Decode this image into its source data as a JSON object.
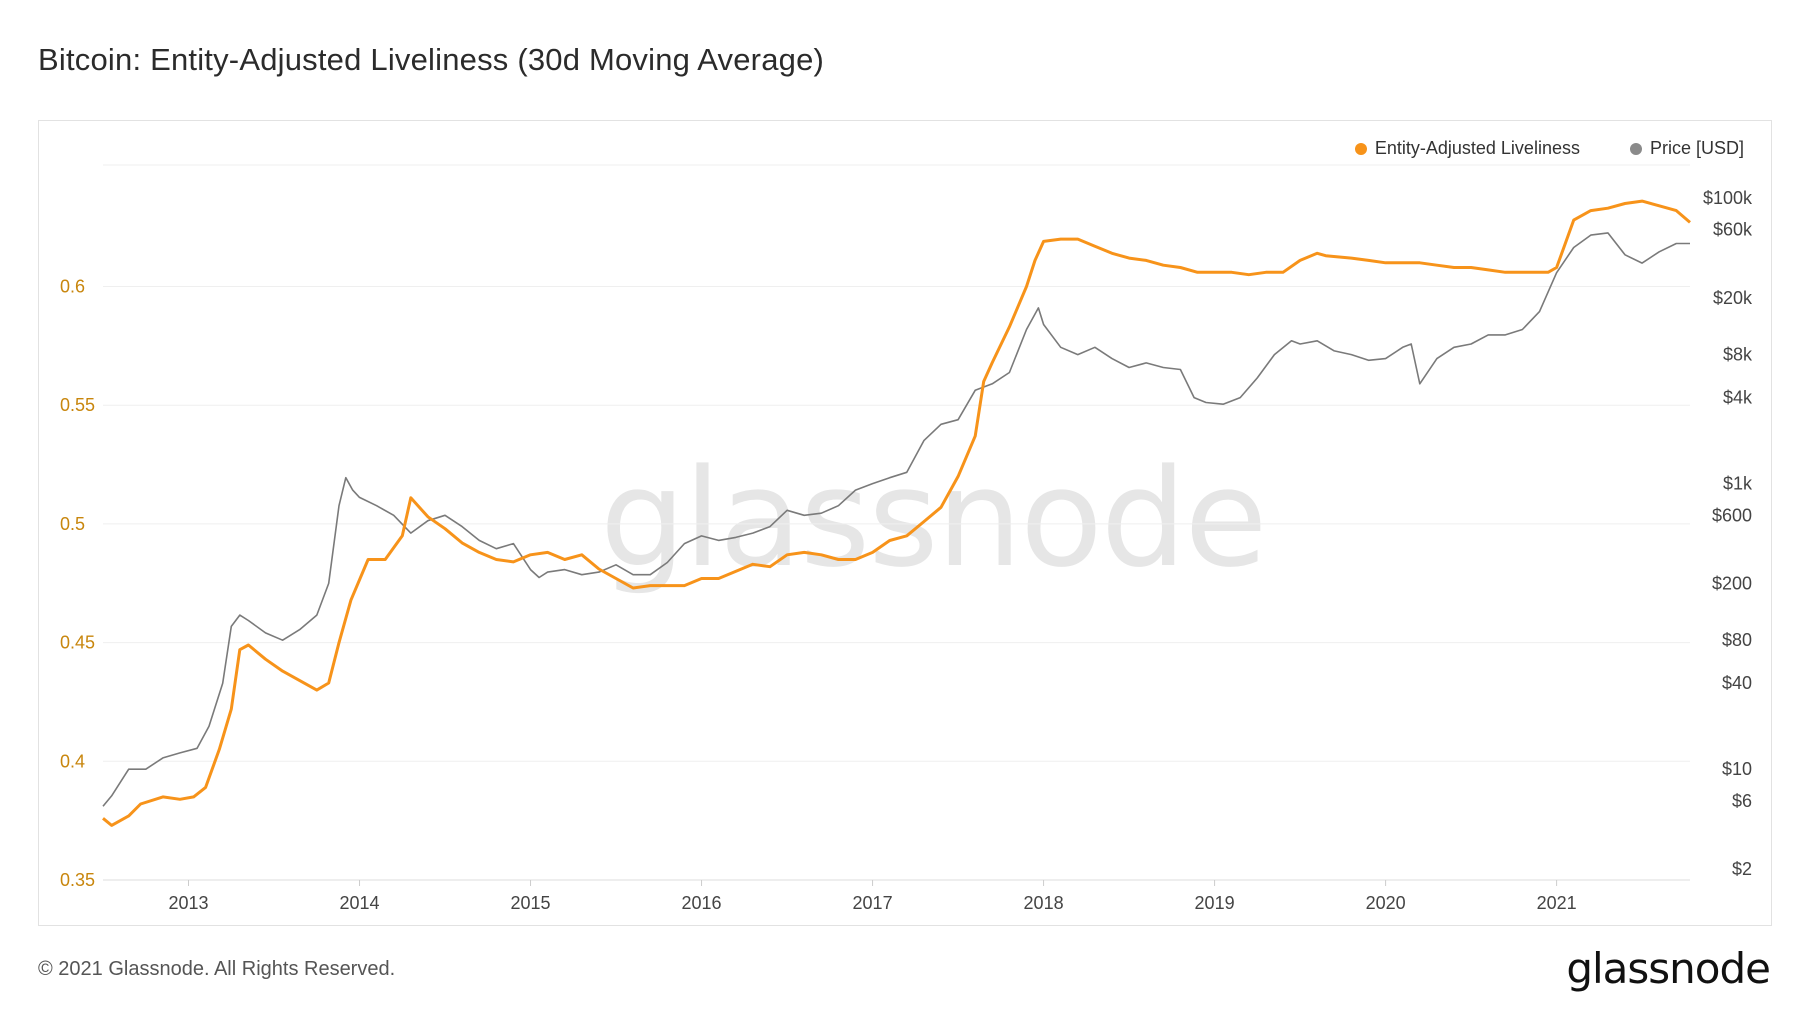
{
  "title": "Bitcoin: Entity-Adjusted Liveliness (30d Moving Average)",
  "footer": "© 2021 Glassnode. All Rights Reserved.",
  "brand": "glassnode",
  "watermark": "glassnode",
  "colors": {
    "liveliness": "#f7931a",
    "price": "#7a7a7a",
    "axis_left": "#c8860d",
    "grid": "#efefef"
  },
  "legend": [
    {
      "label": "Entity-Adjusted Liveliness",
      "color": "#f7931a"
    },
    {
      "label": "Price [USD]",
      "color": "#8a8a8a"
    }
  ],
  "chart_data": {
    "type": "line",
    "x_ticks": [
      "2013",
      "2014",
      "2015",
      "2016",
      "2017",
      "2018",
      "2019",
      "2020",
      "2021"
    ],
    "xlim": [
      2012.5,
      2021.78
    ],
    "y_left": {
      "ticks": [
        0.35,
        0.4,
        0.45,
        0.5,
        0.55,
        0.6
      ],
      "tick_labels": [
        "0.35",
        "0.4",
        "0.45",
        "0.5",
        "0.55",
        "0.6"
      ],
      "ylim": [
        0.35,
        0.6512
      ]
    },
    "y_right": {
      "scale": "log",
      "ticks": [
        2,
        6,
        10,
        40,
        80,
        200,
        600,
        1000,
        4000,
        8000,
        20000,
        60000,
        100000
      ],
      "tick_labels": [
        "$2",
        "$6",
        "$10",
        "$40",
        "$80",
        "$200",
        "$600",
        "$1k",
        "$4k",
        "$8k",
        "$20k",
        "$60k",
        "$100k"
      ]
    },
    "grid": true,
    "legend_position": "top-right",
    "series": [
      {
        "name": "Entity-Adjusted Liveliness",
        "axis": "left",
        "x": [
          2012.5,
          2012.55,
          2012.65,
          2012.72,
          2012.85,
          2012.95,
          2013.03,
          2013.1,
          2013.18,
          2013.25,
          2013.3,
          2013.35,
          2013.45,
          2013.55,
          2013.65,
          2013.75,
          2013.82,
          2013.88,
          2013.95,
          2014.05,
          2014.15,
          2014.25,
          2014.3,
          2014.4,
          2014.5,
          2014.6,
          2014.7,
          2014.8,
          2014.9,
          2015.0,
          2015.1,
          2015.2,
          2015.3,
          2015.4,
          2015.5,
          2015.6,
          2015.7,
          2015.8,
          2015.9,
          2016.0,
          2016.1,
          2016.2,
          2016.3,
          2016.4,
          2016.5,
          2016.6,
          2016.7,
          2016.8,
          2016.9,
          2017.0,
          2017.1,
          2017.2,
          2017.3,
          2017.4,
          2017.5,
          2017.6,
          2017.65,
          2017.7,
          2017.8,
          2017.9,
          2017.95,
          2018.0,
          2018.1,
          2018.15,
          2018.2,
          2018.3,
          2018.4,
          2018.5,
          2018.6,
          2018.7,
          2018.8,
          2018.9,
          2019.0,
          2019.1,
          2019.2,
          2019.3,
          2019.4,
          2019.5,
          2019.6,
          2019.65,
          2019.8,
          2019.9,
          2020.0,
          2020.1,
          2020.2,
          2020.3,
          2020.4,
          2020.5,
          2020.6,
          2020.7,
          2020.8,
          2020.9,
          2020.95,
          2021.0,
          2021.05,
          2021.1,
          2021.2,
          2021.3,
          2021.4,
          2021.5,
          2021.6,
          2021.7,
          2021.78
        ],
        "y": [
          0.376,
          0.373,
          0.377,
          0.382,
          0.385,
          0.384,
          0.385,
          0.389,
          0.405,
          0.422,
          0.447,
          0.449,
          0.443,
          0.438,
          0.434,
          0.43,
          0.433,
          0.45,
          0.468,
          0.485,
          0.485,
          0.495,
          0.511,
          0.503,
          0.498,
          0.492,
          0.488,
          0.485,
          0.484,
          0.487,
          0.488,
          0.485,
          0.487,
          0.481,
          0.477,
          0.473,
          0.474,
          0.474,
          0.474,
          0.477,
          0.477,
          0.48,
          0.483,
          0.482,
          0.487,
          0.488,
          0.487,
          0.485,
          0.485,
          0.488,
          0.493,
          0.495,
          0.501,
          0.507,
          0.52,
          0.537,
          0.56,
          0.568,
          0.583,
          0.6,
          0.611,
          0.619,
          0.62,
          0.62,
          0.62,
          0.617,
          0.614,
          0.612,
          0.611,
          0.609,
          0.608,
          0.606,
          0.606,
          0.606,
          0.605,
          0.606,
          0.606,
          0.611,
          0.614,
          0.613,
          0.612,
          0.611,
          0.61,
          0.61,
          0.61,
          0.609,
          0.608,
          0.608,
          0.607,
          0.606,
          0.606,
          0.606,
          0.606,
          0.608,
          0.618,
          0.628,
          0.632,
          0.633,
          0.635,
          0.636,
          0.634,
          0.632,
          0.627
        ]
      },
      {
        "name": "Price [USD]",
        "axis": "right",
        "x": [
          2012.5,
          2012.55,
          2012.65,
          2012.75,
          2012.85,
          2012.95,
          2013.05,
          2013.12,
          2013.2,
          2013.25,
          2013.3,
          2013.35,
          2013.45,
          2013.55,
          2013.65,
          2013.75,
          2013.82,
          2013.88,
          2013.92,
          2013.96,
          2014.0,
          2014.1,
          2014.2,
          2014.3,
          2014.4,
          2014.5,
          2014.6,
          2014.7,
          2014.8,
          2014.9,
          2015.0,
          2015.05,
          2015.1,
          2015.2,
          2015.3,
          2015.4,
          2015.5,
          2015.6,
          2015.7,
          2015.8,
          2015.9,
          2016.0,
          2016.1,
          2016.2,
          2016.3,
          2016.4,
          2016.5,
          2016.6,
          2016.7,
          2016.8,
          2016.9,
          2017.0,
          2017.1,
          2017.2,
          2017.3,
          2017.4,
          2017.5,
          2017.6,
          2017.7,
          2017.8,
          2017.9,
          2017.97,
          2018.0,
          2018.1,
          2018.2,
          2018.3,
          2018.4,
          2018.5,
          2018.6,
          2018.7,
          2018.8,
          2018.88,
          2018.95,
          2019.05,
          2019.15,
          2019.25,
          2019.35,
          2019.45,
          2019.5,
          2019.6,
          2019.7,
          2019.8,
          2019.9,
          2020.0,
          2020.1,
          2020.15,
          2020.2,
          2020.3,
          2020.4,
          2020.5,
          2020.6,
          2020.7,
          2020.8,
          2020.9,
          2021.0,
          2021.1,
          2021.2,
          2021.3,
          2021.4,
          2021.5,
          2021.6,
          2021.7,
          2021.78
        ],
        "y": [
          5.5,
          6.5,
          10,
          10,
          12,
          13,
          14,
          20,
          40,
          100,
          120,
          110,
          90,
          80,
          95,
          120,
          200,
          700,
          1100,
          900,
          800,
          700,
          600,
          450,
          550,
          600,
          500,
          400,
          350,
          380,
          250,
          220,
          240,
          250,
          230,
          240,
          270,
          230,
          230,
          280,
          380,
          430,
          400,
          420,
          450,
          500,
          650,
          600,
          620,
          700,
          900,
          1000,
          1100,
          1200,
          2000,
          2600,
          2800,
          4500,
          5000,
          6000,
          12000,
          17000,
          13000,
          9000,
          8000,
          9000,
          7500,
          6500,
          7000,
          6500,
          6300,
          4000,
          3700,
          3600,
          4000,
          5500,
          8000,
          10000,
          9500,
          10000,
          8500,
          8000,
          7300,
          7500,
          9000,
          9500,
          5000,
          7500,
          9000,
          9500,
          11000,
          11000,
          12000,
          16000,
          30000,
          45000,
          55000,
          57000,
          40000,
          35000,
          42000,
          48000,
          48000
        ]
      }
    ]
  }
}
